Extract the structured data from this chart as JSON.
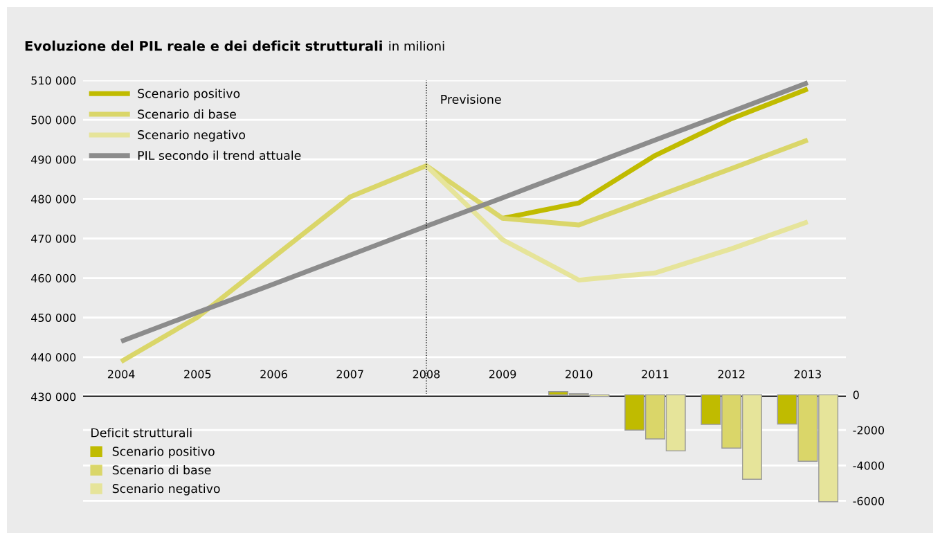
{
  "chart_data": [
    {
      "type": "line",
      "title": "Evoluzione del PIL reale e dei deficit strutturali",
      "subtitle": "in milioni",
      "categories": [
        "2004",
        "2005",
        "2006",
        "2007",
        "2008",
        "2009",
        "2010",
        "2011",
        "2012",
        "2013"
      ],
      "series": [
        {
          "name": "Scenario positivo",
          "color": "#c0bb00",
          "values": [
            null,
            null,
            null,
            null,
            null,
            475100,
            479000,
            491000,
            500300,
            507800
          ]
        },
        {
          "name": "Scenario di base",
          "color": "#dad669",
          "values": [
            438900,
            450100,
            465300,
            480500,
            488400,
            475100,
            473400,
            480500,
            487700,
            494900
          ]
        },
        {
          "name": "Scenario negativo",
          "color": "#e6e49a",
          "values": [
            null,
            null,
            null,
            null,
            488400,
            469700,
            459500,
            461300,
            467400,
            474200
          ]
        },
        {
          "name": "PIL secondo il trend attuale",
          "color": "#8c8c8c",
          "values": [
            444000,
            451300,
            458500,
            465800,
            473100,
            480300,
            487600,
            494900,
            502100,
            509400
          ]
        }
      ],
      "ylim": [
        430000,
        510000
      ],
      "yticks": [
        {
          "value": 430000,
          "label": "430 000"
        },
        {
          "value": 440000,
          "label": "440 000"
        },
        {
          "value": 450000,
          "label": "450 000"
        },
        {
          "value": 460000,
          "label": "460 000"
        },
        {
          "value": 470000,
          "label": "470 000"
        },
        {
          "value": 480000,
          "label": "480 000"
        },
        {
          "value": 490000,
          "label": "490 000"
        },
        {
          "value": 500000,
          "label": "500 000"
        },
        {
          "value": 510000,
          "label": "510 000"
        }
      ],
      "grid": "y",
      "legend": "top left",
      "marker": "none",
      "line_style": "solid",
      "ref_lines": [
        {
          "axis": "x",
          "value": "2008",
          "label": "Previsione",
          "color": "#000000",
          "line_style": "dotted"
        }
      ]
    },
    {
      "type": "bar",
      "legend_title": "Deficit strutturali",
      "categories": [
        "2004",
        "2005",
        "2006",
        "2007",
        "2008",
        "2009",
        "2010",
        "2011",
        "2012",
        "2013"
      ],
      "series": [
        {
          "name": "Scenario positivo",
          "color": "#c0bb00",
          "values": [
            null,
            null,
            null,
            null,
            null,
            null,
            170,
            -2000,
            -1680,
            -1660
          ]
        },
        {
          "name": "Scenario di base",
          "color": "#dad669",
          "values": [
            null,
            null,
            null,
            null,
            null,
            null,
            60,
            -2500,
            -3020,
            -3760
          ]
        },
        {
          "name": "Scenario negativo",
          "color": "#e6e49a",
          "values": [
            null,
            null,
            null,
            null,
            null,
            null,
            -100,
            -3170,
            -4780,
            -6050
          ]
        }
      ],
      "ylim": [
        -6100,
        200
      ],
      "yticks": [
        0,
        -2000,
        -4000,
        -6000
      ],
      "grid": "y",
      "legend": "bottom left",
      "tick_labels": "y"
    }
  ]
}
